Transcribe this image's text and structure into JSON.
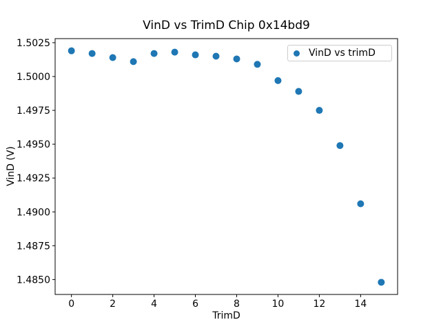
{
  "figure": {
    "background_color": "#ffffff",
    "spine_color": "#000000",
    "text_color": "#000000"
  },
  "chart_data": {
    "type": "scatter",
    "title": "VinD vs TrimD Chip 0x14bd9",
    "xlabel": "TrimD",
    "ylabel": "VinD (V)",
    "legend": [
      "VinD vs trimD"
    ],
    "legend_position": "upper right",
    "marker_color": "#1f77b4",
    "grid": false,
    "x": [
      0,
      1,
      2,
      3,
      4,
      5,
      6,
      7,
      8,
      9,
      10,
      11,
      12,
      13,
      14,
      15
    ],
    "y": [
      1.5019,
      1.5017,
      1.5014,
      1.5011,
      1.5017,
      1.5018,
      1.5016,
      1.5015,
      1.5013,
      1.5009,
      1.4997,
      1.4989,
      1.4975,
      1.4949,
      1.4906,
      1.4848
    ],
    "xticks": [
      0,
      2,
      4,
      6,
      8,
      10,
      12,
      14
    ],
    "xtick_labels": [
      "0",
      "2",
      "4",
      "6",
      "8",
      "10",
      "12",
      "14"
    ],
    "yticks": [
      1.485,
      1.4875,
      1.49,
      1.4925,
      1.495,
      1.4975,
      1.5,
      1.5025
    ],
    "ytick_labels": [
      "1.4850",
      "1.4875",
      "1.4900",
      "1.4925",
      "1.4950",
      "1.4975",
      "1.5000",
      "1.5025"
    ],
    "xlim": [
      -0.79,
      15.79
    ],
    "ylim": [
      1.4839,
      1.5028
    ]
  }
}
